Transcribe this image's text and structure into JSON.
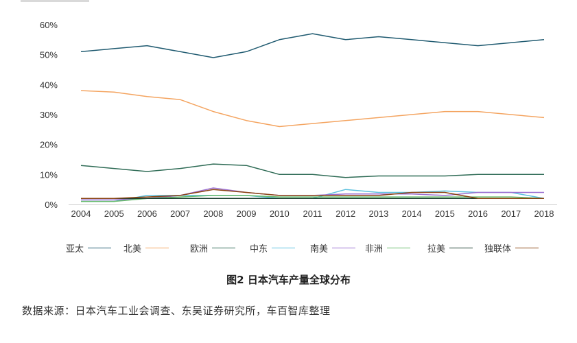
{
  "chart_data": {
    "type": "line",
    "title": "",
    "xlabel": "",
    "ylabel": "",
    "x": [
      "2004",
      "2005",
      "2006",
      "2007",
      "2008",
      "2009",
      "2010",
      "2011",
      "2012",
      "2013",
      "2014",
      "2015",
      "2016",
      "2017",
      "2018"
    ],
    "ylim": [
      0,
      60
    ],
    "yticks": [
      "0%",
      "10%",
      "20%",
      "30%",
      "40%",
      "50%",
      "60%"
    ],
    "grid": false,
    "legend_position": "bottom",
    "series": [
      {
        "name": "亚太",
        "color": "#1f5a70",
        "values": [
          51,
          52,
          53,
          51,
          49,
          51,
          55,
          57,
          55,
          56,
          55,
          54,
          53,
          54,
          55
        ]
      },
      {
        "name": "北美",
        "color": "#f4a460",
        "values": [
          38,
          37.5,
          36,
          35,
          31,
          28,
          26,
          27,
          28,
          29,
          30,
          31,
          31,
          30,
          29
        ]
      },
      {
        "name": "欧洲",
        "color": "#2e6b55",
        "values": [
          13,
          12,
          11,
          12,
          13.5,
          13,
          10,
          10,
          9,
          9.5,
          9.5,
          9.5,
          10,
          10,
          10
        ]
      },
      {
        "name": "中东",
        "color": "#5bc0de",
        "values": [
          1,
          1,
          3,
          3,
          3,
          3,
          2,
          2,
          5,
          4,
          4,
          4.5,
          4,
          4,
          2
        ]
      },
      {
        "name": "南美",
        "color": "#9b6fd1",
        "values": [
          1.5,
          1.5,
          2,
          3,
          5.5,
          4,
          3,
          3,
          3.5,
          3.5,
          3.5,
          3,
          4,
          4,
          4
        ]
      },
      {
        "name": "非洲",
        "color": "#66bb6a",
        "values": [
          1,
          1,
          2,
          2.5,
          3,
          3,
          2.5,
          2.5,
          2.5,
          2.5,
          2.5,
          2.5,
          2.5,
          2.5,
          2
        ]
      },
      {
        "name": "拉美",
        "color": "#1a3d2f",
        "values": [
          2,
          2,
          2,
          2,
          2,
          2,
          2,
          2,
          2,
          2,
          2,
          2,
          2,
          2,
          2
        ]
      },
      {
        "name": "独联体",
        "color": "#8b4513",
        "values": [
          2,
          2,
          2.5,
          3,
          5,
          4,
          3,
          3,
          3,
          3,
          4,
          4,
          2,
          2,
          2
        ]
      }
    ]
  },
  "figure_caption": "图2 日本汽车产量全球分布",
  "source_note": "数据来源：日本汽车工业会调查、东吴证券研究所，车百智库整理"
}
